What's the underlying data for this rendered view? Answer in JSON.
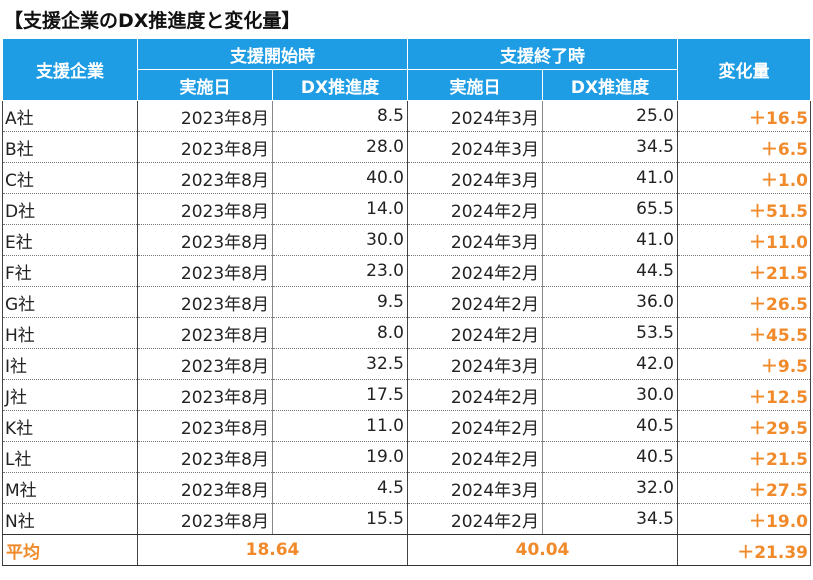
{
  "title": "【支援企業のDX推進度と変化量】",
  "headers": {
    "company": "支援企業",
    "start_group": "支援開始時",
    "end_group": "支援終了時",
    "change": "変化量",
    "date": "実施日",
    "dx": "DX推進度"
  },
  "rows": [
    {
      "name": "A社",
      "start_date": "2023年8月",
      "start_dx": "8.5",
      "end_date": "2024年3月",
      "end_dx": "25.0",
      "change": "＋16.5"
    },
    {
      "name": "B社",
      "start_date": "2023年8月",
      "start_dx": "28.0",
      "end_date": "2024年3月",
      "end_dx": "34.5",
      "change": "＋6.5"
    },
    {
      "name": "C社",
      "start_date": "2023年8月",
      "start_dx": "40.0",
      "end_date": "2024年3月",
      "end_dx": "41.0",
      "change": "＋1.0"
    },
    {
      "name": "D社",
      "start_date": "2023年8月",
      "start_dx": "14.0",
      "end_date": "2024年2月",
      "end_dx": "65.5",
      "change": "＋51.5"
    },
    {
      "name": "E社",
      "start_date": "2023年8月",
      "start_dx": "30.0",
      "end_date": "2024年3月",
      "end_dx": "41.0",
      "change": "＋11.0"
    },
    {
      "name": "F社",
      "start_date": "2023年8月",
      "start_dx": "23.0",
      "end_date": "2024年2月",
      "end_dx": "44.5",
      "change": "＋21.5"
    },
    {
      "name": "G社",
      "start_date": "2023年8月",
      "start_dx": "9.5",
      "end_date": "2024年2月",
      "end_dx": "36.0",
      "change": "＋26.5"
    },
    {
      "name": "H社",
      "start_date": "2023年8月",
      "start_dx": "8.0",
      "end_date": "2024年2月",
      "end_dx": "53.5",
      "change": "＋45.5"
    },
    {
      "name": "I社",
      "start_date": "2023年8月",
      "start_dx": "32.5",
      "end_date": "2024年3月",
      "end_dx": "42.0",
      "change": "＋9.5"
    },
    {
      "name": "J社",
      "start_date": "2023年8月",
      "start_dx": "17.5",
      "end_date": "2024年2月",
      "end_dx": "30.0",
      "change": "＋12.5"
    },
    {
      "name": "K社",
      "start_date": "2023年8月",
      "start_dx": "11.0",
      "end_date": "2024年2月",
      "end_dx": "40.5",
      "change": "＋29.5"
    },
    {
      "name": "L社",
      "start_date": "2023年8月",
      "start_dx": "19.0",
      "end_date": "2024年2月",
      "end_dx": "40.5",
      "change": "＋21.5"
    },
    {
      "name": "M社",
      "start_date": "2023年8月",
      "start_dx": "4.5",
      "end_date": "2024年3月",
      "end_dx": "32.0",
      "change": "＋27.5"
    },
    {
      "name": "N社",
      "start_date": "2023年8月",
      "start_dx": "15.5",
      "end_date": "2024年2月",
      "end_dx": "34.5",
      "change": "＋19.0"
    }
  ],
  "average": {
    "label": "平均",
    "start_dx": "18.64",
    "end_dx": "40.04",
    "change": "＋21.39"
  },
  "colors": {
    "header_bg": "#1e9ce4",
    "accent": "#f08a2a"
  }
}
